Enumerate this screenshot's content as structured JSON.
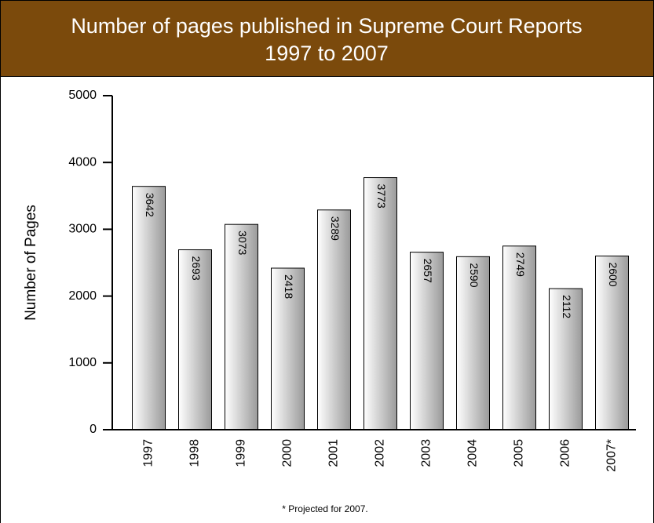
{
  "chart_data": {
    "type": "bar",
    "title": [
      "Number of pages published in Supreme Court Reports",
      "1997 to 2007"
    ],
    "y_label": "Number of Pages",
    "annotation": "* Projected for 2007.",
    "categories": [
      "1997",
      "1998",
      "1999",
      "2000",
      "2001",
      "2002",
      "2003",
      "2004",
      "2005",
      "2006",
      "2007*"
    ],
    "values": [
      3642,
      2693,
      3073,
      2418,
      3289,
      3773,
      2657,
      2590,
      2749,
      2112,
      2600
    ],
    "color": "#9a9a9a",
    "ylim": [
      0,
      5000
    ],
    "yticks": [
      0,
      1000,
      2000,
      3000,
      4000,
      5000
    ]
  }
}
